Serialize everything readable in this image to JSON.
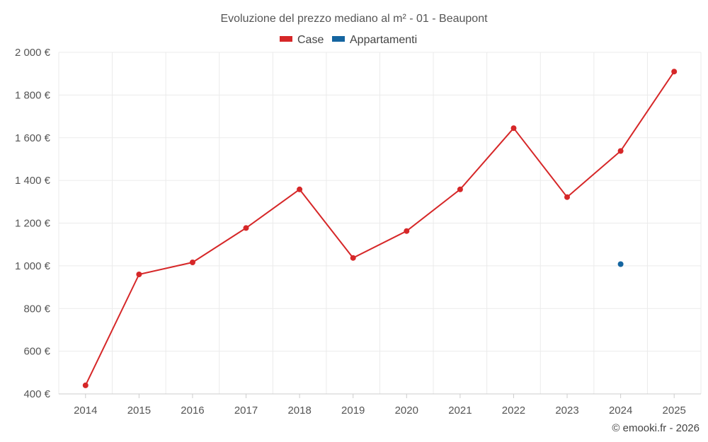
{
  "chart_data": {
    "type": "line",
    "title": "Evoluzione del prezzo mediano al m² - 01 - Beaupont",
    "categories": [
      "2014",
      "2015",
      "2016",
      "2017",
      "2018",
      "2019",
      "2020",
      "2021",
      "2022",
      "2023",
      "2024",
      "2025"
    ],
    "series": [
      {
        "name": "Case",
        "color": "#d62728",
        "values": [
          440,
          960,
          1016,
          1177,
          1358,
          1037,
          1163,
          1358,
          1645,
          1322,
          1538,
          1910
        ]
      },
      {
        "name": "Appartamenti",
        "color": "#1565a0",
        "values": [
          null,
          null,
          null,
          null,
          null,
          null,
          null,
          null,
          null,
          null,
          1008,
          null
        ]
      }
    ],
    "ylim": [
      400,
      2000
    ],
    "yticks": [
      400,
      600,
      800,
      1000,
      1200,
      1400,
      1600,
      1800,
      2000
    ],
    "ytick_labels": [
      "400 €",
      "600 €",
      "800 €",
      "1 000 €",
      "1 200 €",
      "1 400 €",
      "1 600 €",
      "1 800 €",
      "2 000 €"
    ],
    "legend_position": "top-center",
    "grid": true,
    "credit": "© emooki.fr - 2026"
  }
}
